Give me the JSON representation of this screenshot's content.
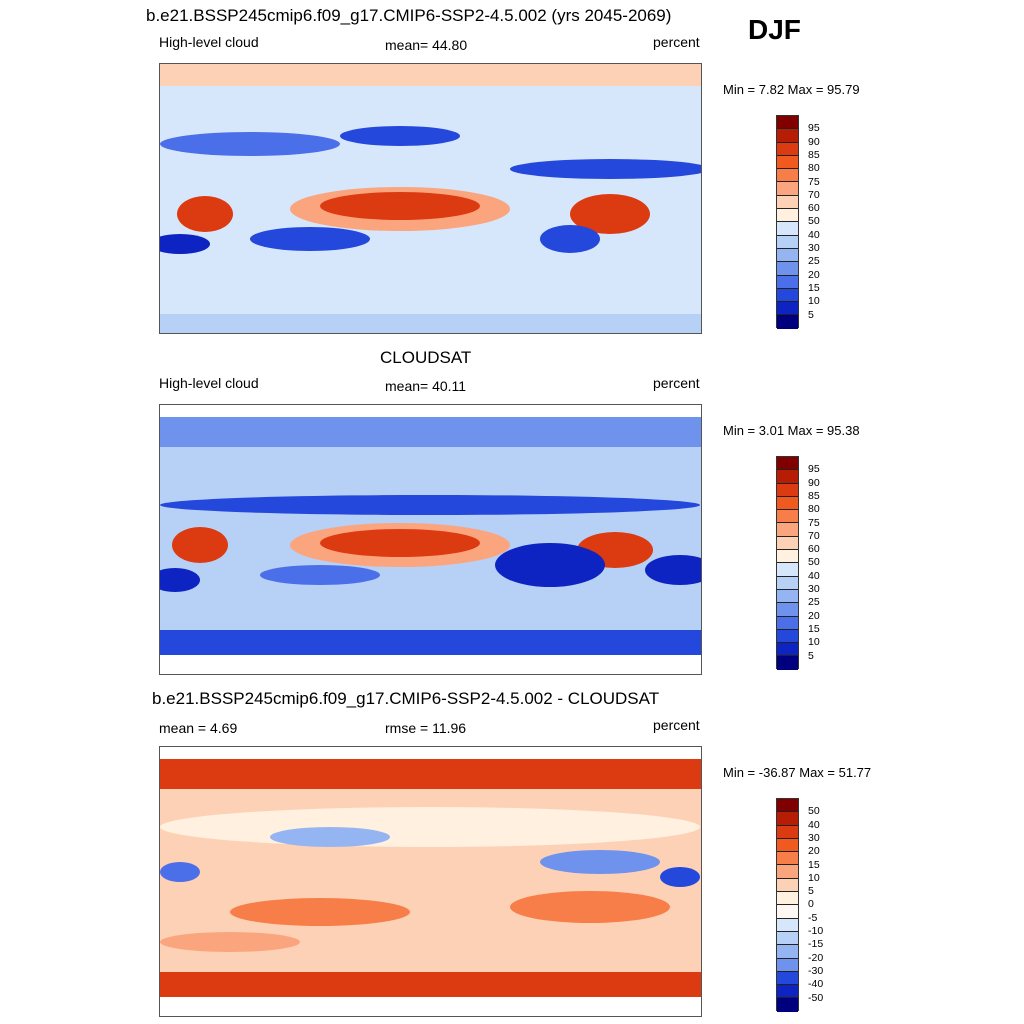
{
  "season": "DJF",
  "chart_data": [
    {
      "type": "heatmap",
      "title": "b.e21.BSSP245cmip6.f09_g17.CMIP6-SSP2-4.5.002 (yrs 2045-2069)",
      "left_label": "High-level cloud",
      "center_label": "mean=  44.80",
      "units": "percent",
      "min_max": "Min =   7.82 Max =  95.79",
      "mean": 44.8,
      "min": 7.82,
      "max": 95.79,
      "colorbar": {
        "labels": [
          "95",
          "90",
          "85",
          "80",
          "75",
          "70",
          "60",
          "50",
          "40",
          "30",
          "25",
          "20",
          "15",
          "10",
          "5"
        ],
        "colors": [
          "#800000",
          "#b71c05",
          "#dc3a10",
          "#f05a1e",
          "#f77e48",
          "#fba57e",
          "#fdd1b6",
          "#fff0e0",
          "#d6e6fb",
          "#b7d0f6",
          "#95b5f2",
          "#6f93ec",
          "#4b6fe8",
          "#2447dc",
          "#0d24c2",
          "#00007f"
        ]
      }
    },
    {
      "type": "heatmap",
      "title": "CLOUDSAT",
      "left_label": "High-level cloud",
      "center_label": "mean=  40.11",
      "units": "percent",
      "min_max": "Min =   3.01 Max =  95.38",
      "mean": 40.11,
      "min": 3.01,
      "max": 95.38,
      "colorbar": {
        "labels": [
          "95",
          "90",
          "85",
          "80",
          "75",
          "70",
          "60",
          "50",
          "40",
          "30",
          "25",
          "20",
          "15",
          "10",
          "5"
        ],
        "colors": [
          "#800000",
          "#b71c05",
          "#dc3a10",
          "#f05a1e",
          "#f77e48",
          "#fba57e",
          "#fdd1b6",
          "#fff0e0",
          "#d6e6fb",
          "#b7d0f6",
          "#95b5f2",
          "#6f93ec",
          "#4b6fe8",
          "#2447dc",
          "#0d24c2",
          "#00007f"
        ]
      }
    },
    {
      "type": "heatmap",
      "title": "b.e21.BSSP245cmip6.f09_g17.CMIP6-SSP2-4.5.002 - CLOUDSAT",
      "left_label": "mean =   4.69",
      "center_label": "rmse =  11.96",
      "units": "percent",
      "min_max": "Min = -36.87 Max =  51.77",
      "mean": 4.69,
      "rmse": 11.96,
      "min": -36.87,
      "max": 51.77,
      "colorbar": {
        "labels": [
          "50",
          "40",
          "30",
          "20",
          "15",
          "10",
          "5",
          "0",
          "-5",
          "-10",
          "-15",
          "-20",
          "-30",
          "-40",
          "-50"
        ],
        "colors": [
          "#800000",
          "#b71c05",
          "#dc3a10",
          "#f05a1e",
          "#f77e48",
          "#fba57e",
          "#fdd1b6",
          "#fff0e0",
          "#fff8f2",
          "#d6e6fb",
          "#b7d0f6",
          "#95b5f2",
          "#6f93ec",
          "#2447dc",
          "#0d24c2",
          "#00007f"
        ]
      }
    }
  ]
}
